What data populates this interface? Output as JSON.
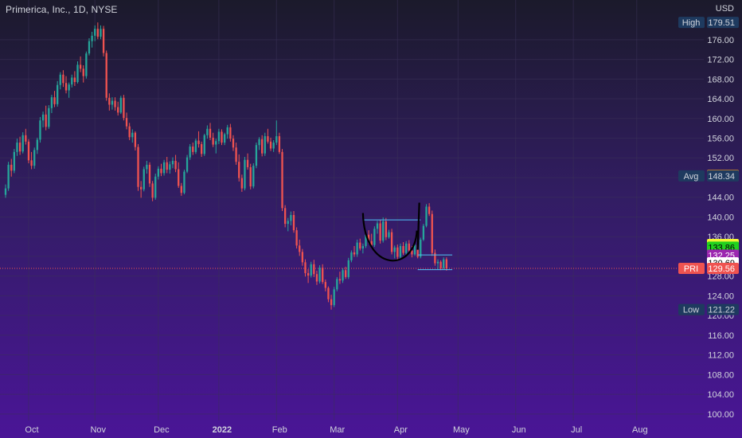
{
  "header": {
    "title": "Primerica, Inc., 1D, NYSE",
    "currency": "USD"
  },
  "colors": {
    "bg_top": "#1b1a2b",
    "bg_bottom": "#4a1597",
    "up": "#26a69a",
    "down": "#ef5350",
    "grid": "#3a3258",
    "axis_text": "#d1d4dc",
    "tag_dark": "#1e3a5f",
    "annotation_line": "#4fc3f7",
    "cup_stroke": "#000000"
  },
  "chart_data": {
    "type": "candlestick",
    "title": "Primerica, Inc., 1D, NYSE",
    "y_axis": {
      "unit": "USD",
      "ylim": [
        99,
        180.5
      ],
      "ticks": [
        100,
        104,
        108,
        112,
        116,
        120,
        124,
        128,
        132,
        136,
        140,
        144,
        148,
        152,
        156,
        160,
        164,
        168,
        172,
        176
      ],
      "tick_labels": [
        "100.00",
        "104.00",
        "108.00",
        "112.00",
        "116.00",
        "120.00",
        "124.00",
        "128.00",
        "132.00",
        "136.00",
        "140.00",
        "144.00",
        "148.00",
        "152.00",
        "156.00",
        "160.00",
        "164.00",
        "168.00",
        "172.00",
        "176.00"
      ]
    },
    "x_axis": {
      "labels": [
        "Oct",
        "Nov",
        "Dec",
        "2022",
        "Feb",
        "Mar",
        "Apr",
        "May",
        "Jun",
        "Jul",
        "Aug"
      ],
      "bold_label": "2022",
      "label_bar_index": [
        8,
        31,
        53,
        74,
        94,
        114,
        136,
        157,
        177,
        197,
        219
      ]
    },
    "candles": [
      [
        144.5,
        146.6,
        143.9,
        145.8
      ],
      [
        145.8,
        151.2,
        145.3,
        150.6
      ],
      [
        150.6,
        151.8,
        148.2,
        149.4
      ],
      [
        149.4,
        153.8,
        148.9,
        153.2
      ],
      [
        153.2,
        155.9,
        152.4,
        155.1
      ],
      [
        155.1,
        156.3,
        152.6,
        153.3
      ],
      [
        153.3,
        157.2,
        152.9,
        156.6
      ],
      [
        156.6,
        157.9,
        154.7,
        155.3
      ],
      [
        155.3,
        155.8,
        150.9,
        151.5
      ],
      [
        151.5,
        153.2,
        149.7,
        150.4
      ],
      [
        150.4,
        154.1,
        149.8,
        153.6
      ],
      [
        153.6,
        156.1,
        152.8,
        155.7
      ],
      [
        155.7,
        160.3,
        155.1,
        159.6
      ],
      [
        159.6,
        161.4,
        158.2,
        160.8
      ],
      [
        160.8,
        162.6,
        157.6,
        158.3
      ],
      [
        158.3,
        162.7,
        157.9,
        162.1
      ],
      [
        162.1,
        164.8,
        161.1,
        164.3
      ],
      [
        164.3,
        165.6,
        162.3,
        162.9
      ],
      [
        162.9,
        167.6,
        162.4,
        166.8
      ],
      [
        166.8,
        169.4,
        165.9,
        168.9
      ],
      [
        168.9,
        169.8,
        166.4,
        167.2
      ],
      [
        167.2,
        168.6,
        165.1,
        165.7
      ],
      [
        165.7,
        167.3,
        164.2,
        166.9
      ],
      [
        166.9,
        168.9,
        166.3,
        168.3
      ],
      [
        168.3,
        169.6,
        166.6,
        167.4
      ],
      [
        167.4,
        171.6,
        167.1,
        170.9
      ],
      [
        170.9,
        172.6,
        169.4,
        170.1
      ],
      [
        170.1,
        170.8,
        167.3,
        168.6
      ],
      [
        168.6,
        173.6,
        168.1,
        173.2
      ],
      [
        173.2,
        176.3,
        172.8,
        175.7
      ],
      [
        175.7,
        177.6,
        174.4,
        176.8
      ],
      [
        176.8,
        178.9,
        175.7,
        178.2
      ],
      [
        178.2,
        179.5,
        176.1,
        176.6
      ],
      [
        176.6,
        178.9,
        176.1,
        178.2
      ],
      [
        178.2,
        178.8,
        172.6,
        173.3
      ],
      [
        173.3,
        173.8,
        163.6,
        164.2
      ],
      [
        164.2,
        165.1,
        161.6,
        162.8
      ],
      [
        162.8,
        164.3,
        161.8,
        163.6
      ],
      [
        163.6,
        164.3,
        161.6,
        162.3
      ],
      [
        162.3,
        163.4,
        160.6,
        161.2
      ],
      [
        161.2,
        164.6,
        160.9,
        164.2
      ],
      [
        164.2,
        164.8,
        159.6,
        160.1
      ],
      [
        160.1,
        161.2,
        157.8,
        158.4
      ],
      [
        158.4,
        159.1,
        155.6,
        156.2
      ],
      [
        156.2,
        157.8,
        155.1,
        157.1
      ],
      [
        157.1,
        157.4,
        153.5,
        154.2
      ],
      [
        154.2,
        154.8,
        145.3,
        146.1
      ],
      [
        146.1,
        147.3,
        143.9,
        145.6
      ],
      [
        145.6,
        150.2,
        145.2,
        149.7
      ],
      [
        149.7,
        151.4,
        148.8,
        150.6
      ],
      [
        150.6,
        151.1,
        146.1,
        146.8
      ],
      [
        146.8,
        147.3,
        143.2,
        143.9
      ],
      [
        143.9,
        148.8,
        143.5,
        148.2
      ],
      [
        148.2,
        150.3,
        147.6,
        149.8
      ],
      [
        149.8,
        150.8,
        148.3,
        148.9
      ],
      [
        148.9,
        151.6,
        148.4,
        151.1
      ],
      [
        151.1,
        152.2,
        148.9,
        149.6
      ],
      [
        149.6,
        151.3,
        148.8,
        150.7
      ],
      [
        150.7,
        152.1,
        149.9,
        151.4
      ],
      [
        151.4,
        152.6,
        149.1,
        149.7
      ],
      [
        149.7,
        151.1,
        145.9,
        146.3
      ],
      [
        146.3,
        146.9,
        144.3,
        144.9
      ],
      [
        144.9,
        149.6,
        144.6,
        149.2
      ],
      [
        149.2,
        152.6,
        148.9,
        152.1
      ],
      [
        152.1,
        154.8,
        151.6,
        154.3
      ],
      [
        154.3,
        155.1,
        152.6,
        153.2
      ],
      [
        153.2,
        155.9,
        152.8,
        155.5
      ],
      [
        155.5,
        157.4,
        154.1,
        154.8
      ],
      [
        154.8,
        155.3,
        152.2,
        152.8
      ],
      [
        152.8,
        156.9,
        152.4,
        156.6
      ],
      [
        156.6,
        158.6,
        155.9,
        157.9
      ],
      [
        157.9,
        159.1,
        155.6,
        156.1
      ],
      [
        156.1,
        157.1,
        154.2,
        154.7
      ],
      [
        154.7,
        155.9,
        152.9,
        155.4
      ],
      [
        155.4,
        157.9,
        154.8,
        157.3
      ],
      [
        157.3,
        157.8,
        154.6,
        155.1
      ],
      [
        155.1,
        157.1,
        154.6,
        156.8
      ],
      [
        156.8,
        158.7,
        155.9,
        158.2
      ],
      [
        158.2,
        158.9,
        155.3,
        155.9
      ],
      [
        155.9,
        156.6,
        153.4,
        154.1
      ],
      [
        154.1,
        155.1,
        150.6,
        151.2
      ],
      [
        151.2,
        152.7,
        147.2,
        147.9
      ],
      [
        147.9,
        148.6,
        145.1,
        145.8
      ],
      [
        145.8,
        152.2,
        145.4,
        151.6
      ],
      [
        151.6,
        152.9,
        149.6,
        150.1
      ],
      [
        150.1,
        150.8,
        145.6,
        146.2
      ],
      [
        146.2,
        150.9,
        145.8,
        150.4
      ],
      [
        150.4,
        155.1,
        149.9,
        154.6
      ],
      [
        154.6,
        156.2,
        153.6,
        155.8
      ],
      [
        155.8,
        156.6,
        152.3,
        152.9
      ],
      [
        152.9,
        157.1,
        152.4,
        156.4
      ],
      [
        156.4,
        157.9,
        154.9,
        155.3
      ],
      [
        155.3,
        156.1,
        153.4,
        153.9
      ],
      [
        153.9,
        155.6,
        153.2,
        155.1
      ],
      [
        155.1,
        159.6,
        154.6,
        156.4
      ],
      [
        156.4,
        157.1,
        152.8,
        153.2
      ],
      [
        153.2,
        153.8,
        141.2,
        141.8
      ],
      [
        141.8,
        142.4,
        137.9,
        138.6
      ],
      [
        138.6,
        139.8,
        137.1,
        139.2
      ],
      [
        139.2,
        141.1,
        138.3,
        140.4
      ],
      [
        140.4,
        141.2,
        136.8,
        137.3
      ],
      [
        137.3,
        137.9,
        133.6,
        134.2
      ],
      [
        134.2,
        135.4,
        132.1,
        132.9
      ],
      [
        132.9,
        133.5,
        130.1,
        130.8
      ],
      [
        130.8,
        131.4,
        127.9,
        128.6
      ],
      [
        128.6,
        129.4,
        126.6,
        128.1
      ],
      [
        128.1,
        130.9,
        127.7,
        130.4
      ],
      [
        130.4,
        131.3,
        127.8,
        128.4
      ],
      [
        128.4,
        129.1,
        126.2,
        126.9
      ],
      [
        126.9,
        130.2,
        126.5,
        129.7
      ],
      [
        129.7,
        130.4,
        126.4,
        126.8
      ],
      [
        126.8,
        127.3,
        124.9,
        125.6
      ],
      [
        125.6,
        125.9,
        122.7,
        123.3
      ],
      [
        123.3,
        124.2,
        121.2,
        122.1
      ],
      [
        122.1,
        125.8,
        121.7,
        125.3
      ],
      [
        125.3,
        127.8,
        124.9,
        127.4
      ],
      [
        127.4,
        128.9,
        126.4,
        127.1
      ],
      [
        127.1,
        129.6,
        126.6,
        129.2
      ],
      [
        129.2,
        129.9,
        127.4,
        127.8
      ],
      [
        127.8,
        131.7,
        127.4,
        131.2
      ],
      [
        131.2,
        133.2,
        130.8,
        132.8
      ],
      [
        132.8,
        134.1,
        131.9,
        132.4
      ],
      [
        132.4,
        135.4,
        131.9,
        134.8
      ],
      [
        134.8,
        135.6,
        133.2,
        133.6
      ],
      [
        133.6,
        134.6,
        132.6,
        134.1
      ],
      [
        134.1,
        136.9,
        133.7,
        136.4
      ],
      [
        136.4,
        137.3,
        134.6,
        135.1
      ],
      [
        135.1,
        136.6,
        133.7,
        134.3
      ],
      [
        134.3,
        138.1,
        133.9,
        137.6
      ],
      [
        137.6,
        139.2,
        136.6,
        138.7
      ],
      [
        138.7,
        139.4,
        134.6,
        135.2
      ],
      [
        135.2,
        139.9,
        134.8,
        139.1
      ],
      [
        139.1,
        139.8,
        135.3,
        135.9
      ],
      [
        135.9,
        137.4,
        135.6,
        136.9
      ],
      [
        136.9,
        137.6,
        132.4,
        132.9
      ],
      [
        132.9,
        134.2,
        131.6,
        133.8
      ],
      [
        133.8,
        134.4,
        131.2,
        131.9
      ],
      [
        131.9,
        134.6,
        131.6,
        134.1
      ],
      [
        134.1,
        134.9,
        132.3,
        132.7
      ],
      [
        132.7,
        135.1,
        132.4,
        134.6
      ],
      [
        134.6,
        135.3,
        132.6,
        133.2
      ],
      [
        133.2,
        134.1,
        131.8,
        132.4
      ],
      [
        132.4,
        134.7,
        132.1,
        134.3
      ],
      [
        134.3,
        134.8,
        131.6,
        131.9
      ],
      [
        131.9,
        135.8,
        131.6,
        135.4
      ],
      [
        135.4,
        138.6,
        135.1,
        138.2
      ],
      [
        138.2,
        142.6,
        137.9,
        142.1
      ],
      [
        142.1,
        142.8,
        140.2,
        140.6
      ],
      [
        140.6,
        141.3,
        132.1,
        132.7
      ],
      [
        132.7,
        133.4,
        130.1,
        130.6
      ],
      [
        130.6,
        131.4,
        129.4,
        130.9
      ],
      [
        130.9,
        131.2,
        129.2,
        129.6
      ],
      [
        129.6,
        131.8,
        129.4,
        131.4
      ],
      [
        131.4,
        131.8,
        129.1,
        129.56
      ]
    ],
    "last_candle_index": 153,
    "price_tags": [
      {
        "label": "High",
        "value": "179.51",
        "y": 179.51,
        "color": "#1e3a5f",
        "text_color": "#d1d4dc"
      },
      {
        "label": "",
        "value": "148.44",
        "y": 148.44,
        "color": "#f7a21b",
        "text_color": "#000000"
      },
      {
        "label": "Avg",
        "value": "148.34",
        "y": 148.34,
        "color": "#1e3a5f",
        "text_color": "#d1d4dc"
      },
      {
        "label": "",
        "value": "134.42",
        "y": 134.42,
        "color": "#f5f534",
        "text_color": "#000000"
      },
      {
        "label": "",
        "value": "133.86",
        "y": 133.86,
        "color": "#22d11e",
        "text_color": "#000000"
      },
      {
        "label": "",
        "value": "132.25",
        "y": 132.25,
        "color": "#9c27b0",
        "text_color": "#ffffff"
      },
      {
        "label": "",
        "value": "130.69",
        "y": 130.69,
        "color": "#ffffff",
        "text_color": "#000000"
      },
      {
        "label": "PRI",
        "value": "129.56",
        "y": 129.56,
        "color": "#ef5350",
        "text_color": "#ffffff"
      },
      {
        "label": "Low",
        "value": "121.22",
        "y": 121.22,
        "color": "#1e3a5f",
        "text_color": "#d1d4dc"
      }
    ],
    "annotations": {
      "last_price_line": 129.56,
      "cup_rim_level": 139.4,
      "handle_top_level": 132.3,
      "handle_bottom_level": 129.3,
      "cup": {
        "start_index": 124,
        "end_index": 143,
        "rim": 140.8,
        "bottom": 130.2
      },
      "handle_line": {
        "start_index": 143,
        "end_index": 143,
        "top": 142.9,
        "bottom": 134.0
      }
    }
  }
}
